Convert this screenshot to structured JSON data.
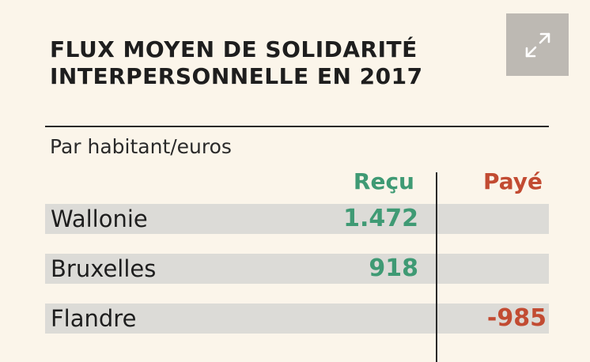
{
  "title": {
    "line1": "FLUX MOYEN DE SOLIDARITÉ",
    "line2": "INTERPERSONNELLE EN 2017"
  },
  "expand_button": {
    "icon": "expand-arrows-icon",
    "color": "#bdb9b3"
  },
  "table": {
    "unit_label": "Par habitant/euros",
    "columns": {
      "recu": "Reçu",
      "paye": "Payé"
    },
    "colors": {
      "recu": "#3f9a74",
      "paye": "#c24b32",
      "row_background": "#dcdbd7"
    },
    "rows": [
      {
        "region": "Wallonie",
        "recu": "1.472",
        "paye": ""
      },
      {
        "region": "Bruxelles",
        "recu": "918",
        "paye": ""
      },
      {
        "region": "Flandre",
        "recu": "",
        "paye": "-985"
      }
    ]
  }
}
